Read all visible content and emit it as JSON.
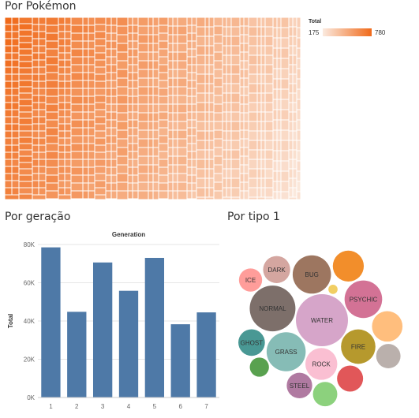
{
  "treemap": {
    "title": "Por Pokémon",
    "legend": {
      "label": "Total",
      "min": 175,
      "max": 780,
      "min_label": "175",
      "max_label": "780",
      "color_low": "#fbeadf",
      "color_high": "#f06a1a"
    }
  },
  "bar": {
    "title": "Por geração"
  },
  "bubble": {
    "title": "Por tipo 1"
  },
  "chart_data": [
    {
      "type": "bar",
      "title": "Generation",
      "xlabel": "",
      "ylabel": "Total",
      "categories": [
        "1",
        "2",
        "3",
        "4",
        "5",
        "6",
        "7"
      ],
      "values": [
        78500,
        44800,
        70600,
        55800,
        73000,
        38300,
        44500
      ],
      "ylim": [
        0,
        80000
      ],
      "yticks": [
        "0K",
        "20K",
        "40K",
        "60K",
        "80K"
      ],
      "color": "#4e79a7",
      "grid": true
    },
    {
      "type": "bubble",
      "title": "",
      "bubbles": [
        {
          "label": "WATER",
          "value": 48000,
          "color": "#d6a5c9"
        },
        {
          "label": "NORMAL",
          "value": 37000,
          "color": "#7d6f6a"
        },
        {
          "label": "GRASS",
          "value": 27000,
          "color": "#86bcb6"
        },
        {
          "label": "BUG",
          "value": 26000,
          "color": "#9d7660"
        },
        {
          "label": "PSYCHIC",
          "value": 25000,
          "color": "#d37295"
        },
        {
          "label": "FIRE",
          "value": 21000,
          "color": "#b6992d"
        },
        {
          "label": "ROCK",
          "value": 18000,
          "color": "#fabfd2"
        },
        {
          "label": "",
          "value": 17000,
          "color": "#f28e2b"
        },
        {
          "label": "",
          "value": 16500,
          "color": "#ffbe7d"
        },
        {
          "label": "DARK",
          "value": 13000,
          "color": "#d4a6a0"
        },
        {
          "label": "GHOST",
          "value": 12500,
          "color": "#499894"
        },
        {
          "label": "",
          "value": 12000,
          "color": "#e15759"
        },
        {
          "label": "STEEL",
          "value": 11500,
          "color": "#b07aa1"
        },
        {
          "label": "",
          "value": 10500,
          "color": "#bab0ac"
        },
        {
          "label": "",
          "value": 10500,
          "color": "#8cd17d"
        },
        {
          "label": "ICE",
          "value": 9500,
          "color": "#ff9d9a"
        },
        {
          "label": "",
          "value": 6500,
          "color": "#59a14f"
        },
        {
          "label": "",
          "value": 1500,
          "color": "#f1ce63"
        }
      ]
    }
  ]
}
